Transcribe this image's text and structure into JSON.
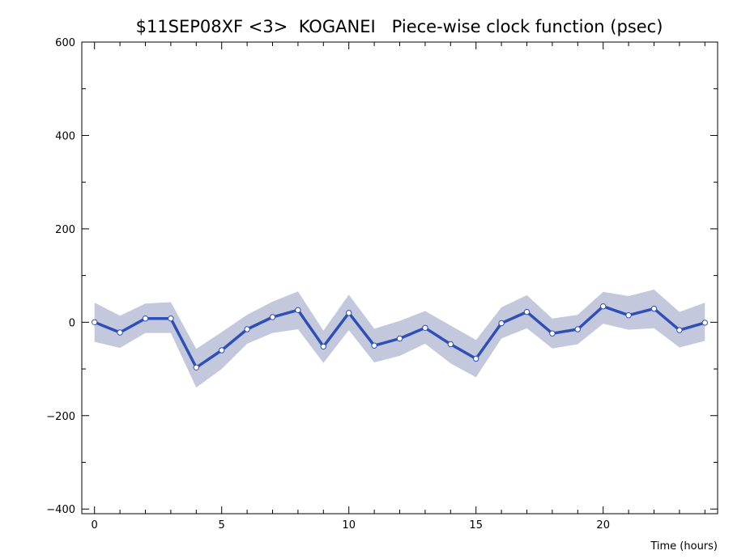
{
  "chart_data": {
    "type": "line",
    "title": "$11SEP08XF <3>  KOGANEI   Piece-wise clock function (psec)",
    "xlabel": "Time (hours)",
    "ylabel": "",
    "xlim": [
      -0.5,
      24.5
    ],
    "ylim": [
      -410,
      600
    ],
    "x_ticks": [
      0,
      5,
      10,
      15,
      20
    ],
    "y_ticks": [
      -400,
      -200,
      0,
      200,
      400,
      600
    ],
    "x_minor_step": 1,
    "y_minor_step": 100,
    "grid": false,
    "series": [
      {
        "x": [
          0,
          1,
          2,
          3,
          4,
          5,
          6,
          7,
          8,
          9,
          10,
          11,
          12,
          13,
          14,
          15,
          16,
          17,
          18,
          19,
          20,
          21,
          22,
          23,
          24
        ],
        "values": [
          0,
          -22,
          8,
          8,
          -97,
          -60,
          -15,
          11,
          26,
          -52,
          20,
          -50,
          -35,
          -12,
          -47,
          -78,
          -2,
          22,
          -24,
          -15,
          34,
          15,
          29,
          -17,
          -1
        ],
        "upper": [
          42,
          14,
          40,
          43,
          -57,
          -21,
          16,
          44,
          66,
          -18,
          59,
          -14,
          3,
          24,
          -7,
          -38,
          32,
          58,
          8,
          16,
          65,
          56,
          70,
          22,
          42
        ],
        "lower": [
          -42,
          -55,
          -23,
          -23,
          -140,
          -100,
          -46,
          -23,
          -15,
          -87,
          -17,
          -86,
          -72,
          -46,
          -88,
          -118,
          -35,
          -13,
          -56,
          -47,
          -3,
          -16,
          -13,
          -54,
          -40
        ]
      }
    ],
    "colors": {
      "line": "#2f4fb8",
      "band": "#c3c8dc",
      "marker_fill": "#ffffff",
      "axis": "#000000"
    }
  }
}
